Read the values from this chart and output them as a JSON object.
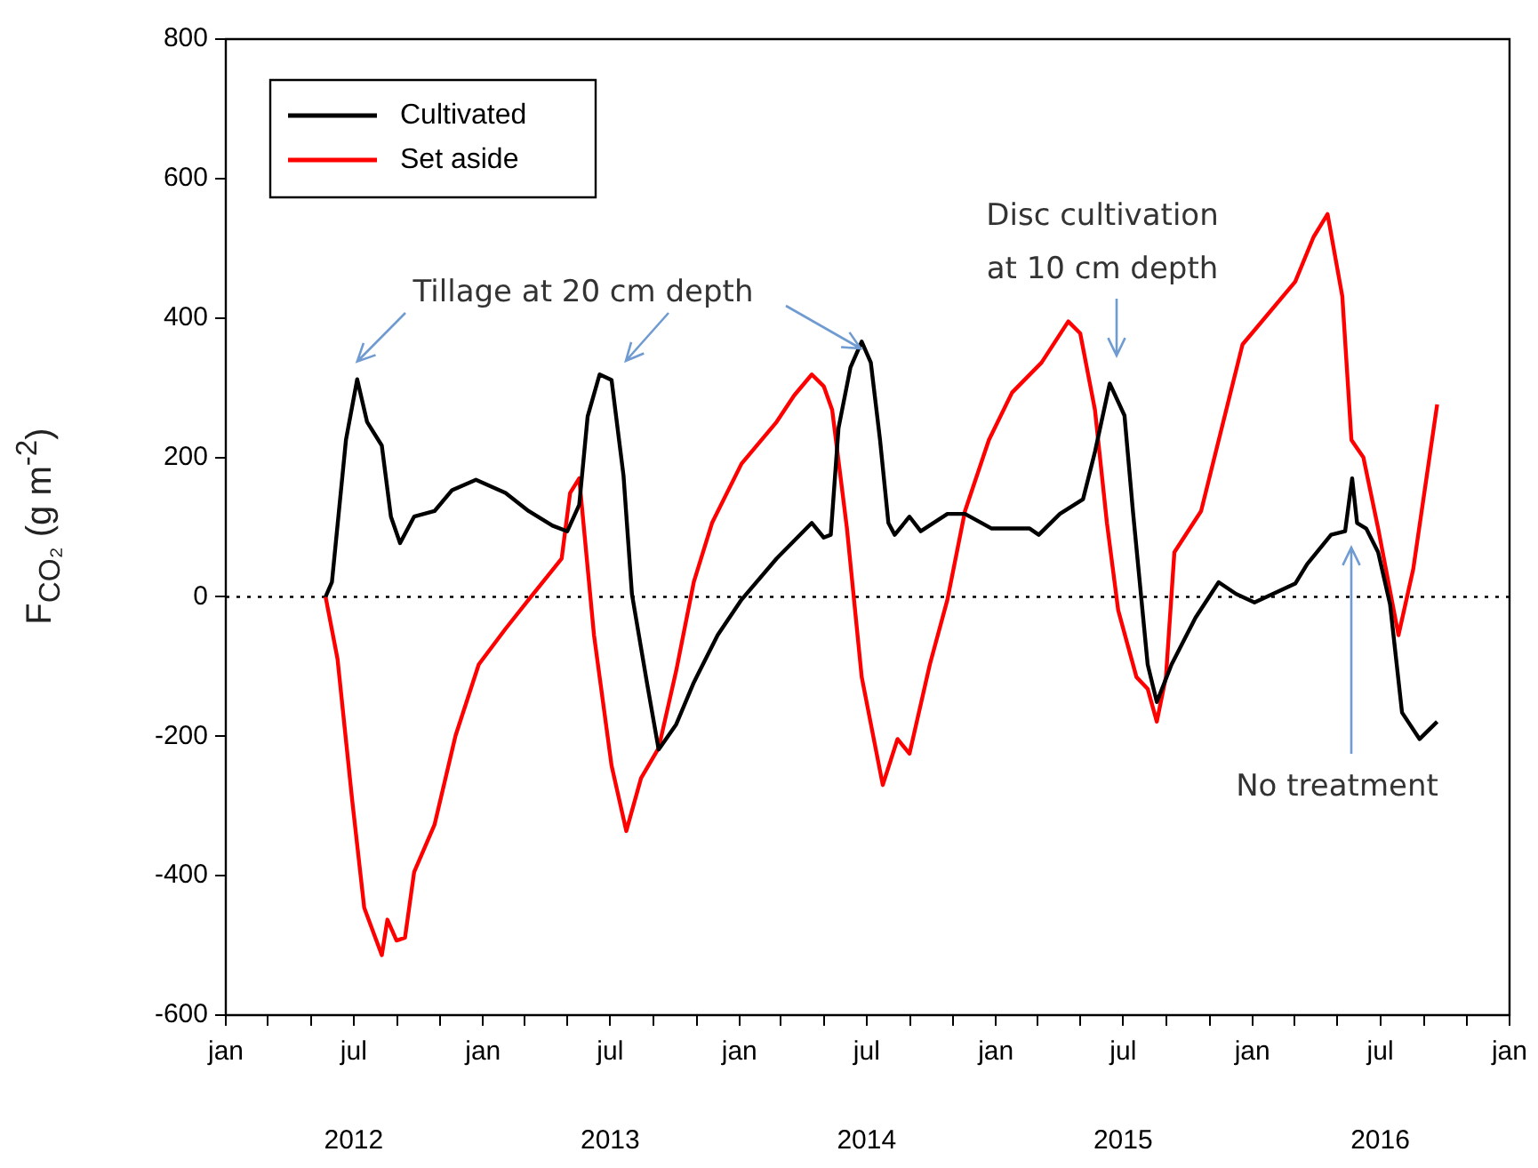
{
  "chart_data": {
    "type": "line",
    "ylabel": "F$_{CO₂}$ (g m$^{-2}$)",
    "xlim": [
      "2012-01-01",
      "2017-01-01"
    ],
    "ylim": [
      -600,
      800
    ],
    "yticks": [
      -600,
      -400,
      -200,
      0,
      200,
      400,
      600,
      800
    ],
    "xticks": [
      {
        "value": "2012-01",
        "label": "jan"
      },
      {
        "value": "2012-03",
        "label": null
      },
      {
        "value": "2012-05",
        "label": null
      },
      {
        "value": "2012-07",
        "label": "jul"
      },
      {
        "value": "2012-09",
        "label": null
      },
      {
        "value": "2012-11",
        "label": null
      },
      {
        "value": "2013-01",
        "label": "jan"
      },
      {
        "value": "2013-03",
        "label": null
      },
      {
        "value": "2013-05",
        "label": null
      },
      {
        "value": "2013-07",
        "label": "jul"
      },
      {
        "value": "2013-09",
        "label": null
      },
      {
        "value": "2013-11",
        "label": null
      },
      {
        "value": "2014-01",
        "label": "jan"
      },
      {
        "value": "2014-03",
        "label": null
      },
      {
        "value": "2014-05",
        "label": null
      },
      {
        "value": "2014-07",
        "label": "jul"
      },
      {
        "value": "2014-09",
        "label": null
      },
      {
        "value": "2014-11",
        "label": null
      },
      {
        "value": "2015-01",
        "label": "jan"
      },
      {
        "value": "2015-03",
        "label": null
      },
      {
        "value": "2015-05",
        "label": null
      },
      {
        "value": "2015-07",
        "label": "jul"
      },
      {
        "value": "2015-09",
        "label": null
      },
      {
        "value": "2015-11",
        "label": null
      },
      {
        "value": "2016-01",
        "label": "jan"
      },
      {
        "value": "2016-03",
        "label": null
      },
      {
        "value": "2016-05",
        "label": null
      },
      {
        "value": "2016-07",
        "label": "jul"
      },
      {
        "value": "2016-09",
        "label": null
      },
      {
        "value": "2016-11",
        "label": null
      },
      {
        "value": "2017-01",
        "label": "jan"
      }
    ],
    "x2lim": [
      "2012-01-01",
      "2017-01-01"
    ],
    "x2ticks": [
      {
        "value": "2012-07",
        "label": "2012"
      },
      {
        "value": "2013-07",
        "label": "2013"
      },
      {
        "value": "2014-07",
        "label": "2014"
      },
      {
        "value": "2015-07",
        "label": "2015"
      },
      {
        "value": "2016-07",
        "label": "2016"
      }
    ],
    "grid": false,
    "legend": "top left",
    "marker": "none",
    "line_style": "solid",
    "ref_lines": [
      {
        "axis": "y",
        "value": 0,
        "line_style": "dotted",
        "color": "#000000"
      }
    ],
    "annotations": [
      {
        "text": "Tillage at 20 cm depth",
        "x": "2012-07-06",
        "y": 312
      },
      "Disc cultivation\nat 10 cm depth",
      "No treatment"
    ],
    "series": [
      {
        "name": "Cultivated",
        "color": "#000000",
        "x": [
          "2012-05-22",
          "2012-05-31",
          "2012-06-20",
          "2012-07-06",
          "2012-07-20",
          "2012-08-10",
          "2012-08-23",
          "2012-09-05",
          "2012-09-25",
          "2012-10-24",
          "2012-11-18",
          "2012-12-22",
          "2013-02-02",
          "2013-03-07",
          "2013-04-10",
          "2013-05-01",
          "2013-05-18",
          "2013-05-30",
          "2013-06-16",
          "2013-07-03",
          "2013-07-20",
          "2013-08-01",
          "2013-08-22",
          "2013-09-08",
          "2013-10-03",
          "2013-10-28",
          "2013-12-01",
          "2014-01-04",
          "2014-02-23",
          "2014-04-14",
          "2014-05-01",
          "2014-05-11",
          "2014-05-22",
          "2014-06-08",
          "2014-06-24",
          "2014-07-07",
          "2014-07-20",
          "2014-08-01",
          "2014-08-10",
          "2014-08-31",
          "2014-09-16",
          "2014-10-24",
          "2014-11-18",
          "2014-12-26",
          "2015-02-18",
          "2015-03-03",
          "2015-04-02",
          "2015-05-05",
          "2015-05-22",
          "2015-06-12",
          "2015-07-03",
          "2015-07-15",
          "2015-08-05",
          "2015-08-18",
          "2015-09-08",
          "2015-10-12",
          "2015-11-14",
          "2015-12-09",
          "2016-01-04",
          "2016-03-02",
          "2016-03-19",
          "2016-04-22",
          "2016-05-12",
          "2016-05-22",
          "2016-05-29",
          "2016-06-11",
          "2016-06-28",
          "2016-07-15",
          "2016-08-01",
          "2016-08-26",
          "2016-09-20"
        ],
        "values": [
          0,
          21,
          225,
          312,
          251,
          217,
          115,
          77,
          115,
          123,
          153,
          168,
          149,
          123,
          102,
          94,
          132,
          259,
          319,
          311,
          174,
          4,
          -121,
          -219,
          -183,
          -123,
          -55,
          -4,
          55,
          106,
          85,
          89,
          242,
          329,
          366,
          336,
          226,
          106,
          89,
          115,
          94,
          119,
          119,
          98,
          98,
          89,
          119,
          140,
          208,
          306,
          260,
          123,
          -97,
          -151,
          -97,
          -30,
          21,
          4,
          -8,
          19,
          47,
          89,
          94,
          170,
          106,
          98,
          64,
          -11,
          -166,
          -204,
          -179
        ]
      },
      {
        "name": "Set aside",
        "color": "#ff0000",
        "x": [
          "2012-05-22",
          "2012-06-08",
          "2012-06-29",
          "2012-07-16",
          "2012-08-10",
          "2012-08-18",
          "2012-08-31",
          "2012-09-12",
          "2012-09-25",
          "2012-10-24",
          "2012-11-23",
          "2012-12-26",
          "2013-02-02",
          "2013-03-07",
          "2013-04-23",
          "2013-05-05",
          "2013-05-18",
          "2013-06-08",
          "2013-07-03",
          "2013-07-24",
          "2013-08-14",
          "2013-09-08",
          "2013-10-03",
          "2013-10-28",
          "2013-11-23",
          "2014-01-04",
          "2014-02-23",
          "2014-03-20",
          "2014-04-14",
          "2014-05-01",
          "2014-05-13",
          "2014-06-03",
          "2014-06-24",
          "2014-07-24",
          "2014-08-14",
          "2014-08-31",
          "2014-09-29",
          "2014-10-24",
          "2014-11-18",
          "2014-12-22",
          "2015-01-24",
          "2015-03-07",
          "2015-04-14",
          "2015-05-01",
          "2015-05-22",
          "2015-06-08",
          "2015-06-24",
          "2015-07-20",
          "2015-08-05",
          "2015-08-18",
          "2015-08-31",
          "2015-09-12",
          "2015-10-20",
          "2015-12-18",
          "2016-03-02",
          "2016-03-28",
          "2016-04-17",
          "2016-05-08",
          "2016-05-21",
          "2016-06-07",
          "2016-06-28",
          "2016-07-27",
          "2016-08-17",
          "2016-09-20"
        ],
        "values": [
          0,
          -89,
          -293,
          -446,
          -514,
          -463,
          -493,
          -489,
          -395,
          -327,
          -199,
          -97,
          -46,
          -4,
          55,
          149,
          170,
          -55,
          -242,
          -336,
          -260,
          -217,
          -106,
          21,
          106,
          191,
          251,
          289,
          319,
          302,
          268,
          98,
          -115,
          -270,
          -204,
          -225,
          -97,
          -4,
          123,
          225,
          293,
          336,
          395,
          378,
          268,
          106,
          -19,
          -115,
          -132,
          -179,
          -115,
          64,
          123,
          362,
          452,
          516,
          549,
          431,
          225,
          200,
          98,
          -55,
          40,
          276
        ]
      }
    ]
  }
}
